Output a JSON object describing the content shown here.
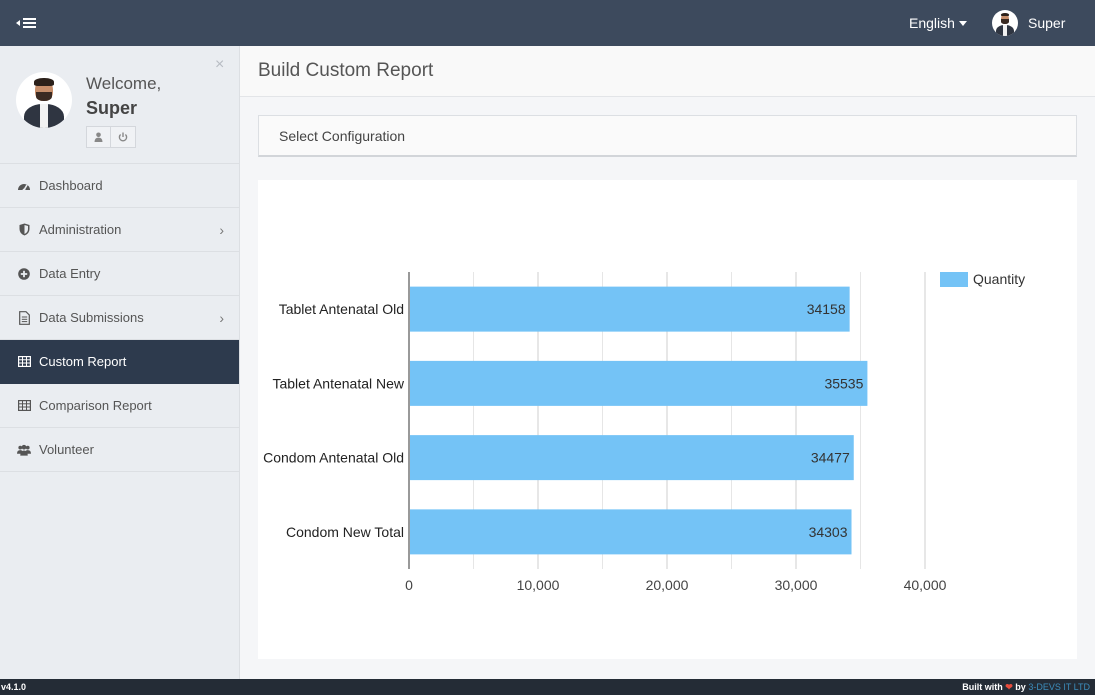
{
  "topbar": {
    "language": "English",
    "username": "Super"
  },
  "sidebar": {
    "welcome": "Welcome,",
    "name": "Super",
    "close_symbol": "×",
    "items": [
      {
        "label": "Dashboard",
        "icon": "dashboard-icon"
      },
      {
        "label": "Administration",
        "icon": "shield-icon",
        "has_submenu": true
      },
      {
        "label": "Data Entry",
        "icon": "plus-circle-icon"
      },
      {
        "label": "Data Submissions",
        "icon": "document-icon",
        "has_submenu": true
      },
      {
        "label": "Custom Report",
        "icon": "table-icon",
        "active": true
      },
      {
        "label": "Comparison Report",
        "icon": "table-icon"
      },
      {
        "label": "Volunteer",
        "icon": "users-icon"
      }
    ]
  },
  "page": {
    "title": "Build Custom Report",
    "config_label": "Select Configuration"
  },
  "chart_data": {
    "type": "bar",
    "orientation": "horizontal",
    "categories": [
      "Tablet Antenatal Old",
      "Tablet Antenatal New",
      "Condom Antenatal Old",
      "Condom New Total"
    ],
    "series": [
      {
        "name": "Quantity",
        "values": [
          34158,
          35535,
          34477,
          34303
        ],
        "color": "#74c3f6"
      }
    ],
    "xlim": [
      0,
      40000
    ],
    "x_ticks": [
      0,
      10000,
      20000,
      30000,
      40000
    ],
    "x_tick_labels": [
      "0",
      "10,000",
      "20,000",
      "30,000",
      "40,000"
    ],
    "data_labels": [
      "34158",
      "35535",
      "34477",
      "34303"
    ],
    "grid": true,
    "legend_position": "top-right"
  },
  "footer": {
    "version": "v4.1.0",
    "built_with": "Built with",
    "by": "by",
    "company": "3-DEVS IT LTD"
  },
  "colors": {
    "topbar": "#3d4a5d",
    "active_nav": "#2d3a4d",
    "bar": "#74c3f6",
    "footer": "#242c36"
  }
}
